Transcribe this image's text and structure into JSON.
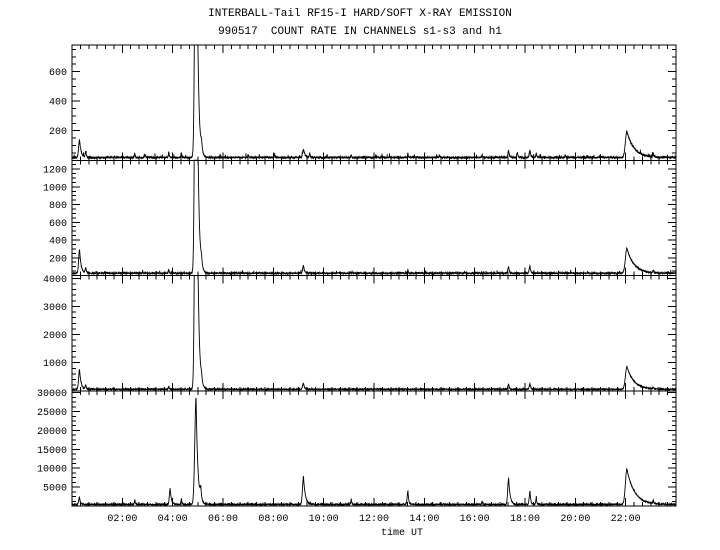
{
  "page": {
    "background": "#ffffff",
    "line_color": "#000000"
  },
  "chart_data": {
    "type": "line",
    "title": "INTERBALL-Tail RF15-I HARD/SOFT X-RAY EMISSION",
    "subtitle": "990517  COUNT RATE IN CHANNELS s1-s3 and h1",
    "xlabel": "time UT",
    "date": "990517",
    "x_range_hours": [
      0,
      24
    ],
    "x_major_tick_hours": [
      2,
      4,
      6,
      8,
      10,
      12,
      14,
      16,
      18,
      20,
      22
    ],
    "x_major_tick_labels": [
      "02:00",
      "04:00",
      "06:00",
      "08:00",
      "10:00",
      "12:00",
      "14:00",
      "16:00",
      "18:00",
      "20:00",
      "22:00"
    ],
    "x_minor_divisions": 6,
    "grid": false,
    "legend": false,
    "spike_format": "[time_hours, peak_count_rate_above_baseline, rise_width_hours, decay_tau_hours(optional)]",
    "panels": [
      {
        "channel": "s1",
        "ylim": [
          0,
          780
        ],
        "ytick_step": 200,
        "ytick_labels": [
          200,
          400,
          600
        ],
        "y_minor_step": 50,
        "baseline": 18,
        "noise": 6,
        "seed": 101,
        "spikes": [
          [
            0.3,
            120,
            0.035,
            0.06
          ],
          [
            0.55,
            40,
            0.025
          ],
          [
            2.5,
            25,
            0.02
          ],
          [
            2.9,
            20,
            0.02
          ],
          [
            3.85,
            35,
            0.02
          ],
          [
            4.35,
            25,
            0.02
          ],
          [
            4.93,
            2600,
            0.045,
            0.06
          ],
          [
            5.15,
            60,
            0.03
          ],
          [
            7.0,
            20,
            0.015
          ],
          [
            8.05,
            22,
            0.015
          ],
          [
            9.2,
            55,
            0.035,
            0.06
          ],
          [
            9.45,
            30,
            0.02
          ],
          [
            11.1,
            18,
            0.015
          ],
          [
            13.35,
            28,
            0.015
          ],
          [
            14.6,
            18,
            0.015
          ],
          [
            16.3,
            20,
            0.015
          ],
          [
            17.35,
            45,
            0.03
          ],
          [
            17.7,
            35,
            0.025
          ],
          [
            18.2,
            50,
            0.03
          ],
          [
            18.45,
            30,
            0.02
          ],
          [
            19.6,
            18,
            0.015
          ],
          [
            21.0,
            18,
            0.015
          ],
          [
            22.05,
            175,
            0.06,
            0.28
          ],
          [
            23.1,
            22,
            0.02
          ]
        ]
      },
      {
        "channel": "s2",
        "ylim": [
          0,
          1300
        ],
        "ytick_step": 200,
        "ytick_labels": [
          200,
          400,
          600,
          800,
          1000,
          1200
        ],
        "y_minor_step": 50,
        "baseline": 25,
        "noise": 8,
        "seed": 202,
        "spikes": [
          [
            0.3,
            270,
            0.035,
            0.06
          ],
          [
            0.55,
            60,
            0.025
          ],
          [
            3.85,
            40,
            0.02
          ],
          [
            4.93,
            5200,
            0.045,
            0.06
          ],
          [
            5.15,
            80,
            0.03
          ],
          [
            9.2,
            90,
            0.035
          ],
          [
            13.35,
            35,
            0.015
          ],
          [
            17.35,
            70,
            0.03
          ],
          [
            18.2,
            80,
            0.03
          ],
          [
            22.05,
            280,
            0.06,
            0.28
          ],
          [
            23.1,
            30,
            0.02
          ]
        ]
      },
      {
        "channel": "s3",
        "ylim": [
          0,
          4100
        ],
        "ytick_step": 1000,
        "ytick_labels": [
          1000,
          2000,
          3000,
          4000
        ],
        "y_minor_step": 200,
        "baseline": 50,
        "noise": 15,
        "seed": 303,
        "spikes": [
          [
            0.3,
            700,
            0.035,
            0.06
          ],
          [
            0.55,
            150,
            0.025
          ],
          [
            3.85,
            100,
            0.02
          ],
          [
            4.93,
            16000,
            0.045,
            0.06
          ],
          [
            5.15,
            220,
            0.03
          ],
          [
            9.2,
            220,
            0.035
          ],
          [
            17.35,
            180,
            0.03
          ],
          [
            18.2,
            200,
            0.03
          ],
          [
            22.05,
            800,
            0.06,
            0.28
          ],
          [
            23.1,
            60,
            0.02
          ]
        ]
      },
      {
        "channel": "h1",
        "ylim": [
          0,
          30500
        ],
        "ytick_step": 5000,
        "ytick_labels": [
          5000,
          10000,
          15000,
          20000,
          25000,
          30000
        ],
        "y_minor_step": 1250,
        "baseline": 400,
        "noise": 120,
        "seed": 404,
        "spikes": [
          [
            0.3,
            1800,
            0.035
          ],
          [
            2.5,
            1200,
            0.02
          ],
          [
            3.9,
            4200,
            0.03,
            0.05
          ],
          [
            4.35,
            1500,
            0.02
          ],
          [
            4.93,
            28200,
            0.05,
            0.07
          ],
          [
            5.12,
            3000,
            0.03
          ],
          [
            9.2,
            7200,
            0.04,
            0.07
          ],
          [
            11.1,
            1300,
            0.02
          ],
          [
            13.35,
            3600,
            0.03
          ],
          [
            16.3,
            900,
            0.02
          ],
          [
            17.35,
            6800,
            0.035,
            0.06
          ],
          [
            18.2,
            3500,
            0.03
          ],
          [
            18.45,
            1800,
            0.02
          ],
          [
            22.05,
            9300,
            0.06,
            0.3
          ],
          [
            23.1,
            800,
            0.02
          ]
        ]
      }
    ]
  }
}
